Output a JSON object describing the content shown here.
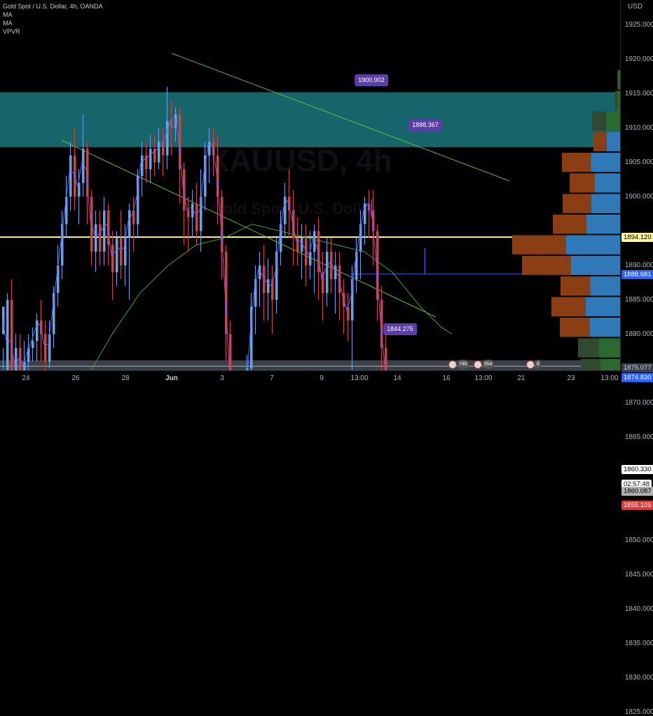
{
  "chart": {
    "title": "Gold Spot / U.S. Dollar, 4h, OANDA",
    "indicators": [
      "MA",
      "MA",
      "VPVR"
    ],
    "watermark_symbol": "XAUUSD, 4h",
    "watermark_name": "Gold Spot / U.S. Dollar",
    "currency": "USD",
    "colors": {
      "up": "#5aa9f0",
      "down": "#e03b3b",
      "ma_fast": "#7b5cff",
      "ma_slow": "#3fa33f",
      "trendline": "#5fbf3a",
      "resistance_zone": "#16656b",
      "support_zone": "#1b3d22",
      "yellow_line": "#fff59d",
      "callout": "#5b3ea6",
      "blue_badge": "#2962ff"
    }
  },
  "price_axis": {
    "currency_label": "USD",
    "ticks": [
      "1925.000",
      "1920.000",
      "1915.000",
      "1910.000",
      "1905.000",
      "1900.000",
      "1890.000",
      "1885.000",
      "1880.000",
      "1870.000",
      "1865.000",
      "1850.000",
      "1845.000",
      "1840.000",
      "1835.000",
      "1830.000",
      "1825.000"
    ],
    "badges": [
      {
        "label": "1894.120",
        "bg": "#fff59d",
        "fg": "#000000",
        "price": 1894.12
      },
      {
        "label": "1888.681",
        "bg": "#2962ff",
        "fg": "#ffffff",
        "price": 1888.681
      },
      {
        "label": "1875.077",
        "bg": "#3a3e4a",
        "fg": "#d1d4dc",
        "price": 1875.077
      },
      {
        "label": "1874.830",
        "bg": "#2962ff",
        "fg": "#ffffff",
        "price": 1873.7
      },
      {
        "label": "1860.330",
        "bg": "#ffffff",
        "fg": "#000000",
        "price": 1860.33
      },
      {
        "label": "02:57:48",
        "bg": "#ffffff",
        "fg": "#000000",
        "price": 1858.2
      },
      {
        "label": "1860.087",
        "bg": "#b0b0b0",
        "fg": "#000000",
        "price": 1857.1
      },
      {
        "label": "1855.106",
        "bg": "#e03b3b",
        "fg": "#ffffff",
        "price": 1855.106
      }
    ]
  },
  "time_axis": {
    "labels": [
      {
        "text": "24",
        "bold": false
      },
      {
        "text": "26",
        "bold": false
      },
      {
        "text": "28",
        "bold": false
      },
      {
        "text": "Jun",
        "bold": true
      },
      {
        "text": "3",
        "bold": false
      },
      {
        "text": "7",
        "bold": false
      },
      {
        "text": "9",
        "bold": false
      },
      {
        "text": "13:00",
        "bold": false
      },
      {
        "text": "14",
        "bold": false
      },
      {
        "text": "16",
        "bold": false
      },
      {
        "text": "13:00",
        "bold": false
      },
      {
        "text": "21",
        "bold": false
      },
      {
        "text": "23",
        "bold": false
      },
      {
        "text": "13:00",
        "bold": false
      }
    ]
  },
  "callouts": [
    {
      "label": "1900.902"
    },
    {
      "label": "1888.367"
    },
    {
      "label": "1844.275"
    }
  ],
  "events": [
    {
      "label": "746"
    },
    {
      "label": "554"
    },
    {
      "label": "8"
    }
  ]
}
